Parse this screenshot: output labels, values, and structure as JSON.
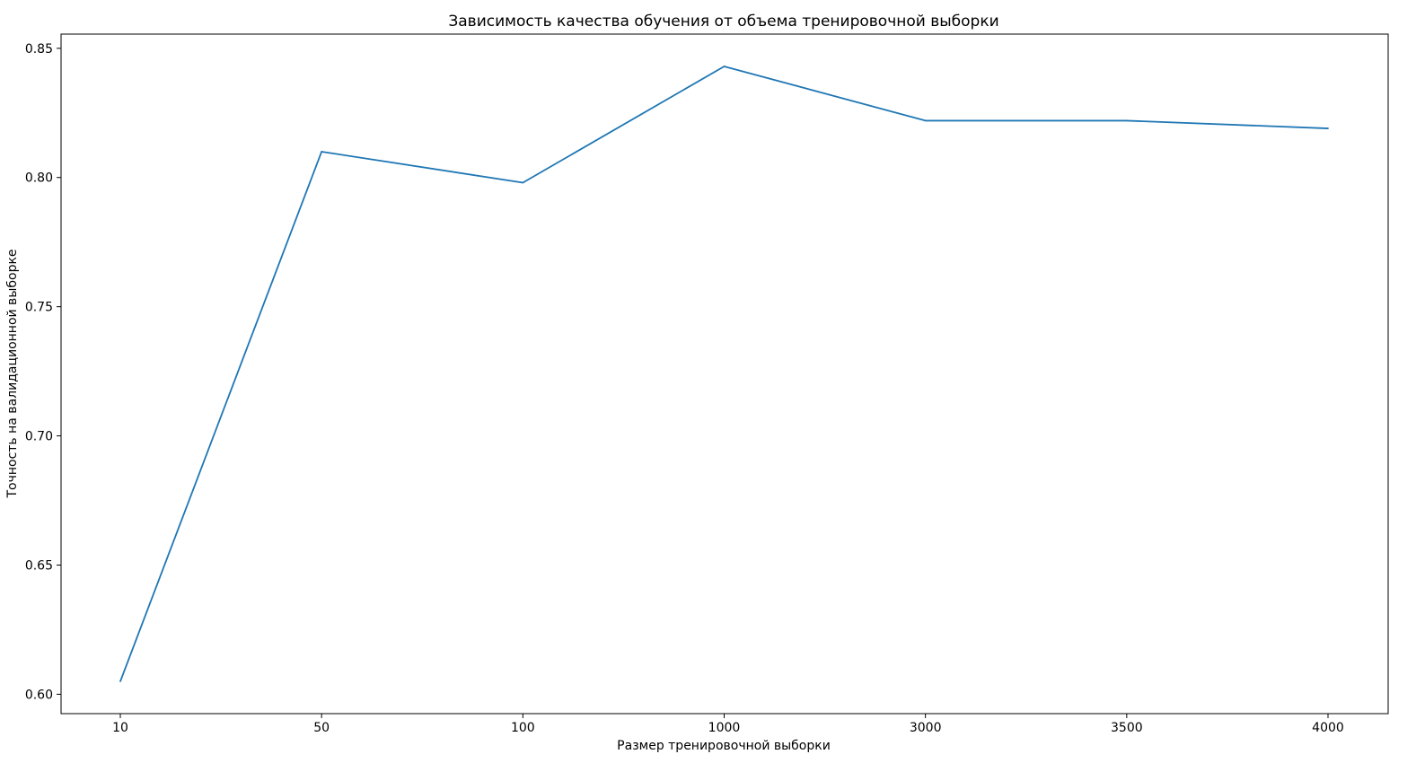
{
  "chart_data": {
    "type": "line",
    "title": "Зависимость качества обучения от объема тренировочной выборки",
    "xlabel": "Размер тренировочной выборки",
    "ylabel": "Точность на валидационной выборке",
    "categories": [
      "10",
      "50",
      "100",
      "1000",
      "3000",
      "3500",
      "4000"
    ],
    "series": [
      {
        "values": [
          0.605,
          0.81,
          0.798,
          0.843,
          0.822,
          0.822,
          0.819
        ]
      }
    ],
    "yticks": [
      0.6,
      0.65,
      0.7,
      0.75,
      0.8,
      0.85
    ],
    "ytick_labels": [
      "0.60",
      "0.65",
      "0.70",
      "0.75",
      "0.80",
      "0.85"
    ],
    "ylim": [
      0.5925,
      0.8555
    ],
    "grid": false,
    "legend": false,
    "line_color": "#1f77b4",
    "axes_color": "#000000"
  }
}
